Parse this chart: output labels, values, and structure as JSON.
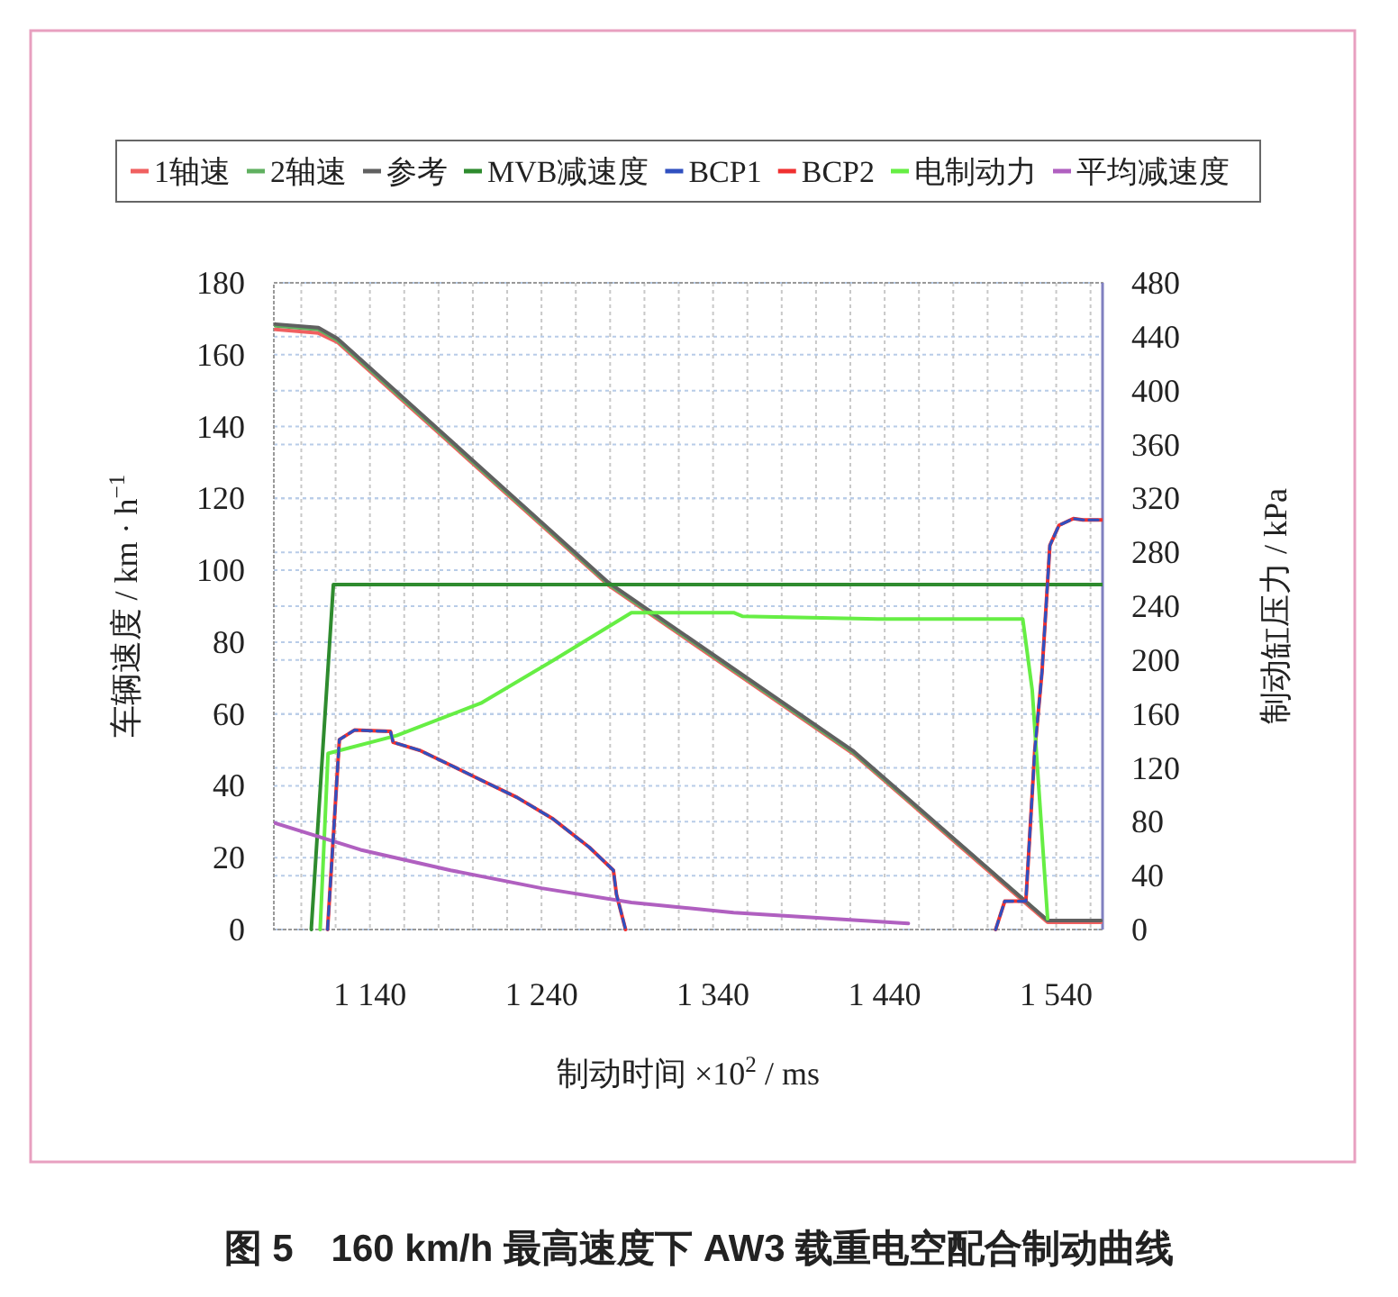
{
  "chart_data": {
    "type": "line",
    "title": "图 5　160 km/h 最高速度下 AW3 载重电空配合制动曲线",
    "xlabel": "制动时间 ×10$^{2}$ / ms",
    "ylabel": "车辆速度 / km · h$^{−1}$",
    "y2label": "制动缸压力 / kPa",
    "xlim": [
      1084,
      1567
    ],
    "xticks": [
      {
        "value": 1100,
        "label": null
      },
      {
        "value": 1120,
        "label": null
      },
      {
        "value": 1140,
        "label": "1 140"
      },
      {
        "value": 1160,
        "label": null
      },
      {
        "value": 1180,
        "label": null
      },
      {
        "value": 1200,
        "label": null
      },
      {
        "value": 1220,
        "label": null
      },
      {
        "value": 1240,
        "label": "1 240"
      },
      {
        "value": 1260,
        "label": null
      },
      {
        "value": 1280,
        "label": null
      },
      {
        "value": 1300,
        "label": null
      },
      {
        "value": 1320,
        "label": null
      },
      {
        "value": 1340,
        "label": "1 340"
      },
      {
        "value": 1360,
        "label": null
      },
      {
        "value": 1380,
        "label": null
      },
      {
        "value": 1400,
        "label": null
      },
      {
        "value": 1420,
        "label": null
      },
      {
        "value": 1440,
        "label": "1 440"
      },
      {
        "value": 1460,
        "label": null
      },
      {
        "value": 1480,
        "label": null
      },
      {
        "value": 1500,
        "label": null
      },
      {
        "value": 1520,
        "label": null
      },
      {
        "value": 1540,
        "label": "1 540"
      },
      {
        "value": 1560,
        "label": null
      }
    ],
    "ylim": [
      0,
      180
    ],
    "yticks": [
      0,
      20,
      40,
      60,
      80,
      100,
      120,
      140,
      160,
      180
    ],
    "y2lim": [
      0,
      480
    ],
    "y2ticks": [
      0,
      40,
      80,
      120,
      160,
      200,
      240,
      280,
      320,
      360,
      400,
      440,
      480
    ],
    "grid": true,
    "legend": "top",
    "marker": "none",
    "line_style": "solid",
    "series": [
      {
        "name": "1轴速",
        "color": "#f06060",
        "x": [
          1085,
          1110,
          1121,
          1279,
          1422,
          1535,
          1566
        ],
        "values": [
          167,
          166,
          163.5,
          95.8,
          48.8,
          2,
          2
        ]
      },
      {
        "name": "2轴速",
        "color": "#60b060",
        "x": [
          1085,
          1110,
          1121,
          1279,
          1422,
          1535,
          1566
        ],
        "values": [
          168,
          167,
          164,
          96.2,
          49.2,
          2.5,
          2.5
        ]
      },
      {
        "name": "参考",
        "color": "#606060",
        "x": [
          1085,
          1110,
          1121,
          1279,
          1422,
          1535,
          1566
        ],
        "values": [
          168.5,
          167.5,
          164.5,
          96.6,
          49.6,
          2.5,
          2.5
        ]
      },
      {
        "name": "MVB减速度",
        "color": "#2e8b2e",
        "x": [
          1105.8,
          1118.7,
          1567
        ],
        "values": [
          0,
          96,
          96
        ]
      },
      {
        "name": "BCP1",
        "color": "#3050c0",
        "axis": "y2",
        "line_style": "dashed",
        "x": [
          1115.3,
          1122.2,
          1131,
          1152,
          1153.5,
          1169,
          1183.7,
          1204.7,
          1225.8,
          1246.8,
          1267.9,
          1281.9,
          1283.7,
          1289,
          null,
          1504.7,
          1510,
          1522.3,
          1527.5,
          1531.7,
          1536.3,
          1541.6,
          1550,
          1555.6,
          1567
        ],
        "values": [
          0,
          141,
          148,
          147,
          139,
          133,
          124,
          111,
          98,
          82,
          61,
          44,
          26,
          0,
          null,
          0,
          21,
          21,
          133,
          191,
          285,
          300,
          305,
          304,
          304
        ]
      },
      {
        "name": "BCP2",
        "color": "#f03030",
        "axis": "y2",
        "x": [
          1115.3,
          1122.2,
          1131,
          1152,
          1153.5,
          1169,
          1183.7,
          1204.7,
          1225.8,
          1246.8,
          1267.9,
          1281.9,
          1283.7,
          1289,
          null,
          1504.7,
          1510,
          1522.3,
          1527.5,
          1531.7,
          1536.3,
          1541.6,
          1550,
          1555.6,
          1567
        ],
        "values": [
          0,
          141,
          148,
          147,
          139,
          133,
          124,
          111,
          98,
          82,
          61,
          44,
          26,
          0,
          null,
          0,
          21,
          21,
          133,
          191,
          285,
          300,
          305,
          304,
          304
        ]
      },
      {
        "name": "电制动力",
        "color": "#66ee44",
        "x": [
          1111,
          1115.6,
          1155.6,
          1204.7,
          1246.8,
          1292.4,
          1352,
          1357,
          1436,
          1520.5,
          1526,
          1535
        ],
        "values": [
          0,
          49,
          54,
          63,
          74.9,
          88.2,
          88.2,
          87.2,
          86.4,
          86.4,
          66.7,
          3
        ]
      },
      {
        "name": "平均减速度",
        "color": "#b060c0",
        "x": [
          1084,
          1134.5,
          1187,
          1240,
          1292.4,
          1352,
          1453.8
        ],
        "values": [
          29.7,
          22.2,
          16.5,
          11.5,
          7.5,
          4.7,
          1.7
        ]
      }
    ]
  }
}
